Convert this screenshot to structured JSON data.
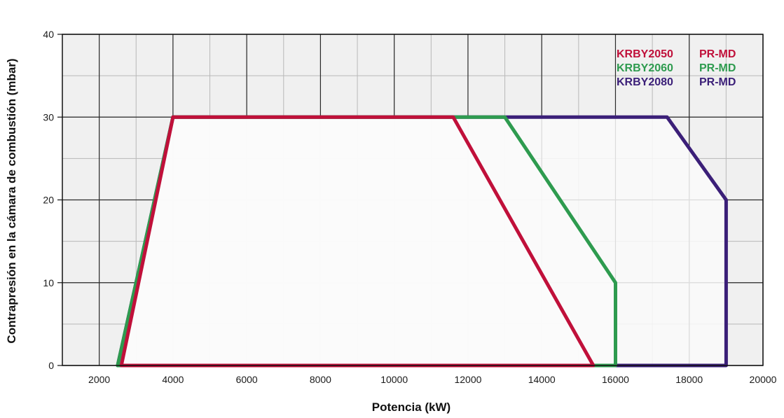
{
  "chart_data": {
    "type": "area",
    "title": "",
    "xlabel": "Potencia (kW)",
    "ylabel": "Contrapresión en la cámara de combustión (mbar)",
    "xlim": [
      1000,
      20000
    ],
    "ylim": [
      0,
      40
    ],
    "x_ticks": [
      2000,
      4000,
      6000,
      8000,
      10000,
      12000,
      14000,
      16000,
      18000,
      20000
    ],
    "y_ticks": [
      0,
      10,
      20,
      30,
      40
    ],
    "grid": true,
    "legend_position": "top-right",
    "series": [
      {
        "name": "KRBY2080 PR-MD",
        "model": "KRBY2080",
        "suffix": "PR-MD",
        "color": "#3b1f78",
        "points": [
          [
            2500,
            0
          ],
          [
            4000,
            30
          ],
          [
            17400,
            30
          ],
          [
            19000,
            20
          ],
          [
            19000,
            0
          ],
          [
            2500,
            0
          ]
        ]
      },
      {
        "name": "KRBY2060 PR-MD",
        "model": "KRBY2060",
        "suffix": "PR-MD",
        "color": "#2e9b4f",
        "points": [
          [
            2500,
            0
          ],
          [
            4000,
            30
          ],
          [
            13000,
            30
          ],
          [
            16000,
            10
          ],
          [
            16000,
            0
          ],
          [
            2500,
            0
          ]
        ]
      },
      {
        "name": "KRBY2050 PR-MD",
        "model": "KRBY2050",
        "suffix": "PR-MD",
        "color": "#c0103a",
        "points": [
          [
            2600,
            0
          ],
          [
            4000,
            30
          ],
          [
            11600,
            30
          ],
          [
            15400,
            0
          ],
          [
            2600,
            0
          ]
        ]
      }
    ],
    "legend_order": [
      "KRBY2050 PR-MD",
      "KRBY2060 PR-MD",
      "KRBY2080 PR-MD"
    ]
  }
}
